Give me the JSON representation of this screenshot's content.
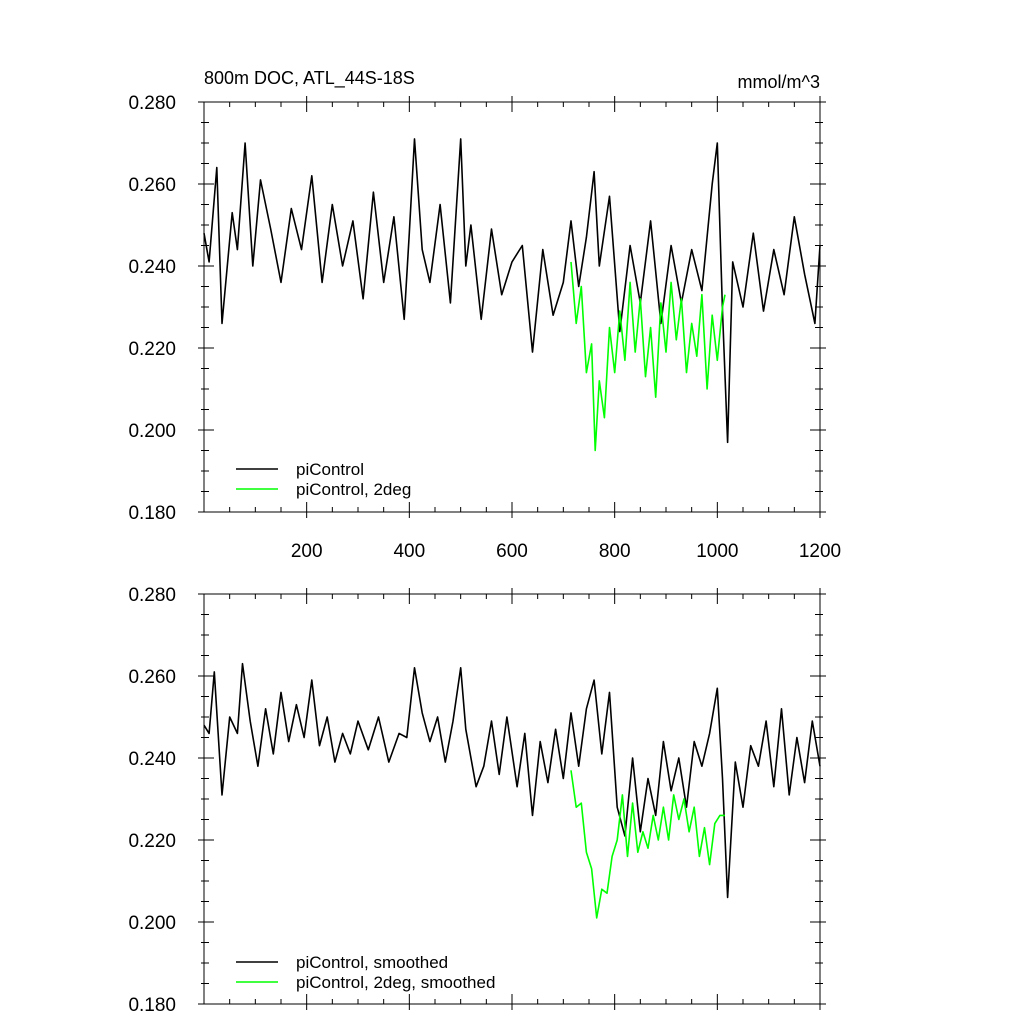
{
  "panels": [
    {
      "title_left": "800m DOC, ATL_44S-18S",
      "title_right": "mmol/m^3"
    },
    {
      "title_left": "",
      "title_right": ""
    }
  ],
  "chart_data": [
    {
      "type": "line",
      "title": "800m DOC, ATL_44S-18S",
      "units": "mmol/m^3",
      "xlim": [
        0,
        1200
      ],
      "ylim": [
        0.18,
        0.28
      ],
      "x_ticks": [
        200,
        400,
        600,
        800,
        1000,
        1200
      ],
      "y_ticks": [
        "0.180",
        "0.200",
        "0.220",
        "0.240",
        "0.260",
        "0.280"
      ],
      "legend": "bottom-left",
      "series": [
        {
          "name": "piControl",
          "color": "#000000",
          "x": [
            0,
            10,
            25,
            35,
            55,
            65,
            80,
            95,
            110,
            130,
            150,
            170,
            190,
            210,
            230,
            250,
            270,
            290,
            310,
            330,
            350,
            370,
            390,
            400,
            410,
            425,
            440,
            460,
            480,
            500,
            510,
            520,
            540,
            560,
            580,
            600,
            620,
            640,
            660,
            680,
            700,
            715,
            730,
            745,
            760,
            770,
            790,
            810,
            830,
            850,
            870,
            890,
            910,
            930,
            950,
            970,
            990,
            1000,
            1010,
            1020,
            1030,
            1050,
            1070,
            1090,
            1110,
            1130,
            1150,
            1170,
            1190,
            1200
          ],
          "y": [
            0.248,
            0.241,
            0.264,
            0.226,
            0.253,
            0.244,
            0.27,
            0.24,
            0.261,
            0.249,
            0.236,
            0.254,
            0.244,
            0.262,
            0.236,
            0.255,
            0.24,
            0.251,
            0.232,
            0.258,
            0.236,
            0.252,
            0.227,
            0.248,
            0.271,
            0.244,
            0.236,
            0.255,
            0.231,
            0.271,
            0.24,
            0.25,
            0.227,
            0.249,
            0.233,
            0.241,
            0.245,
            0.219,
            0.244,
            0.228,
            0.236,
            0.251,
            0.235,
            0.247,
            0.263,
            0.24,
            0.257,
            0.224,
            0.245,
            0.231,
            0.251,
            0.226,
            0.245,
            0.231,
            0.244,
            0.234,
            0.26,
            0.27,
            0.229,
            0.197,
            0.241,
            0.23,
            0.248,
            0.229,
            0.244,
            0.233,
            0.252,
            0.238,
            0.226,
            0.245
          ]
        },
        {
          "name": "piControl, 2deg",
          "color": "#00ff00",
          "x": [
            715,
            725,
            735,
            745,
            755,
            762,
            770,
            780,
            790,
            800,
            810,
            820,
            830,
            840,
            850,
            860,
            870,
            880,
            890,
            900,
            910,
            920,
            930,
            940,
            950,
            960,
            970,
            980,
            990,
            1000,
            1010,
            1015
          ],
          "y": [
            0.241,
            0.226,
            0.235,
            0.214,
            0.221,
            0.195,
            0.212,
            0.203,
            0.225,
            0.214,
            0.229,
            0.217,
            0.236,
            0.219,
            0.232,
            0.213,
            0.225,
            0.208,
            0.231,
            0.219,
            0.236,
            0.222,
            0.232,
            0.214,
            0.226,
            0.218,
            0.233,
            0.21,
            0.228,
            0.217,
            0.23,
            0.233
          ]
        }
      ]
    },
    {
      "type": "line",
      "xlim": [
        0,
        1200
      ],
      "ylim": [
        0.18,
        0.28
      ],
      "y_ticks": [
        "0.180",
        "0.200",
        "0.220",
        "0.240",
        "0.260",
        "0.280"
      ],
      "legend": "bottom-left",
      "series": [
        {
          "name": "piControl, smoothed",
          "color": "#000000",
          "x": [
            0,
            10,
            20,
            35,
            50,
            65,
            75,
            90,
            105,
            120,
            135,
            150,
            165,
            180,
            195,
            210,
            225,
            240,
            255,
            270,
            285,
            300,
            320,
            340,
            360,
            380,
            395,
            410,
            425,
            440,
            455,
            470,
            485,
            500,
            510,
            530,
            545,
            560,
            575,
            590,
            610,
            625,
            640,
            655,
            670,
            685,
            700,
            715,
            730,
            745,
            760,
            775,
            790,
            805,
            820,
            835,
            850,
            865,
            880,
            895,
            910,
            925,
            940,
            955,
            970,
            985,
            1000,
            1010,
            1020,
            1035,
            1050,
            1065,
            1080,
            1095,
            1110,
            1125,
            1140,
            1155,
            1170,
            1185,
            1200
          ],
          "y": [
            0.248,
            0.246,
            0.261,
            0.231,
            0.25,
            0.246,
            0.263,
            0.249,
            0.238,
            0.252,
            0.241,
            0.256,
            0.244,
            0.253,
            0.245,
            0.259,
            0.243,
            0.25,
            0.239,
            0.246,
            0.241,
            0.249,
            0.242,
            0.25,
            0.239,
            0.246,
            0.245,
            0.262,
            0.251,
            0.244,
            0.25,
            0.239,
            0.249,
            0.262,
            0.247,
            0.233,
            0.238,
            0.249,
            0.236,
            0.25,
            0.233,
            0.246,
            0.226,
            0.244,
            0.234,
            0.247,
            0.235,
            0.251,
            0.238,
            0.252,
            0.259,
            0.241,
            0.256,
            0.228,
            0.221,
            0.24,
            0.222,
            0.235,
            0.226,
            0.244,
            0.232,
            0.24,
            0.228,
            0.244,
            0.238,
            0.246,
            0.257,
            0.235,
            0.206,
            0.239,
            0.228,
            0.243,
            0.238,
            0.249,
            0.233,
            0.252,
            0.231,
            0.245,
            0.234,
            0.249,
            0.238
          ]
        },
        {
          "name": "piControl, 2deg, smoothed",
          "color": "#00ff00",
          "x": [
            715,
            725,
            735,
            745,
            755,
            765,
            775,
            785,
            795,
            805,
            815,
            825,
            835,
            845,
            855,
            865,
            875,
            885,
            895,
            905,
            915,
            925,
            935,
            945,
            955,
            965,
            975,
            985,
            995,
            1005,
            1015
          ],
          "y": [
            0.237,
            0.228,
            0.229,
            0.217,
            0.213,
            0.201,
            0.208,
            0.207,
            0.216,
            0.22,
            0.231,
            0.216,
            0.229,
            0.217,
            0.222,
            0.218,
            0.226,
            0.22,
            0.228,
            0.22,
            0.231,
            0.225,
            0.23,
            0.222,
            0.228,
            0.216,
            0.223,
            0.214,
            0.224,
            0.226,
            0.226
          ]
        }
      ]
    }
  ]
}
